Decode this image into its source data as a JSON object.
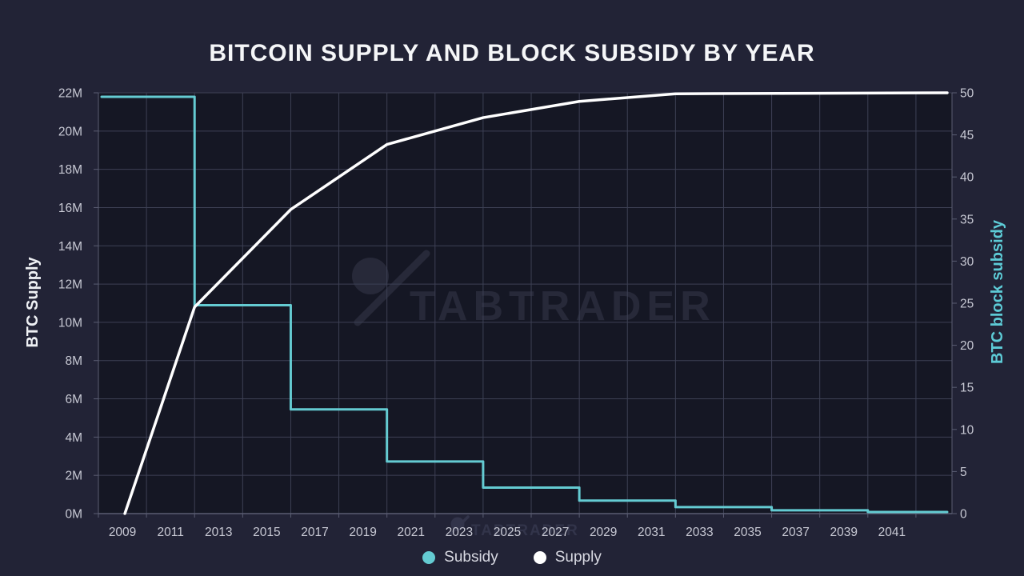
{
  "chart_data": {
    "type": "line",
    "title": "BITCOIN SUPPLY AND BLOCK SUBSIDY BY YEAR",
    "watermark_brand": "TABTRADER",
    "x_axis": {
      "range_years": [
        2008,
        2043.5
      ],
      "label_years": [
        2009,
        2011,
        2013,
        2015,
        2017,
        2019,
        2021,
        2023,
        2025,
        2027,
        2029,
        2031,
        2033,
        2035,
        2037,
        2039,
        2041
      ],
      "gridline_step_years": 2
    },
    "y_left": {
      "title": "BTC Supply",
      "range_millions": [
        0,
        22
      ],
      "tick_labels": [
        "0M",
        "2M",
        "4M",
        "6M",
        "8M",
        "10M",
        "12M",
        "14M",
        "16M",
        "18M",
        "20M",
        "22M"
      ],
      "tick_values_millions": [
        0,
        2,
        4,
        6,
        8,
        10,
        12,
        14,
        16,
        18,
        20,
        22
      ]
    },
    "y_right": {
      "title": "BTC block subsidy",
      "range": [
        0,
        50
      ],
      "tick_labels": [
        "0",
        "5",
        "10",
        "15",
        "20",
        "25",
        "30",
        "35",
        "40",
        "45",
        "50"
      ],
      "tick_values": [
        0,
        5,
        10,
        15,
        20,
        25,
        30,
        35,
        40,
        45,
        50
      ]
    },
    "series": [
      {
        "name": "Subsidy",
        "axis": "right",
        "line_type": "step",
        "color": "#64cbd2",
        "start": {
          "year": 2008.15,
          "value": 50
        },
        "halvings": [
          {
            "year": 2012,
            "value_after": 25
          },
          {
            "year": 2016,
            "value_after": 12.5
          },
          {
            "year": 2020,
            "value_after": 6.25
          },
          {
            "year": 2024,
            "value_after": 3.125
          },
          {
            "year": 2028,
            "value_after": 1.5625
          },
          {
            "year": 2032,
            "value_after": 0.78125
          },
          {
            "year": 2036,
            "value_after": 0.390625
          },
          {
            "year": 2040,
            "value_after": 0.1953125
          }
        ],
        "end_year": 2043.3
      },
      {
        "name": "Supply",
        "axis": "left",
        "line_type": "line",
        "color": "#ffffff",
        "points_year_millionBTC": [
          [
            2009.1,
            0
          ],
          [
            2012,
            10.8
          ],
          [
            2016,
            15.9
          ],
          [
            2020,
            19.3
          ],
          [
            2024,
            20.7
          ],
          [
            2028,
            21.55
          ],
          [
            2032,
            21.95
          ],
          [
            2043.3,
            22
          ]
        ]
      }
    ],
    "legend": [
      {
        "label": "Subsidy",
        "color": "#64cbd2"
      },
      {
        "label": "Supply",
        "color": "#ffffff"
      }
    ],
    "grid": true,
    "legend_position": "bottom-center"
  },
  "style": {
    "bg": "#222336",
    "plot_bg": "#151724",
    "grid_color": "#3d4054",
    "axis_color": "#5a5d72",
    "tick_text": "#c8c9d4",
    "title_color": "#f5f6f8",
    "left_title_color": "#eef0f4",
    "right_title_color": "#5dcbd6",
    "legend_text": "#d8d9e2",
    "watermark_center": "#272939",
    "watermark_bottom": "#32344a"
  }
}
